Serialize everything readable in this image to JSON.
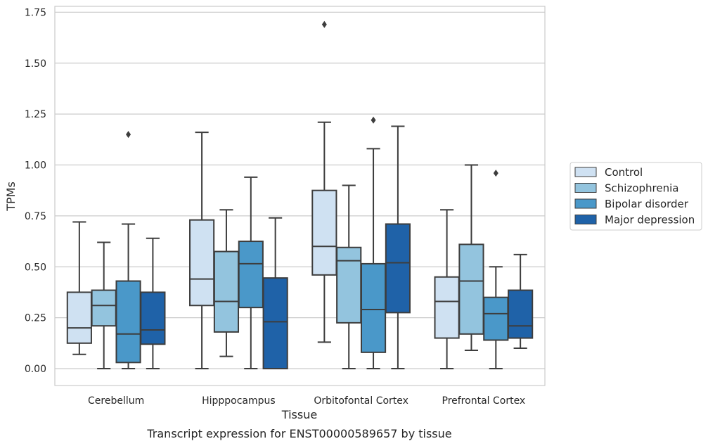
{
  "chart_data": {
    "type": "box",
    "caption": "Transcript expression for ENST00000589657 by tissue",
    "xlabel": "Tissue",
    "ylabel": "TPMs",
    "ylim": [
      -0.08,
      1.76
    ],
    "yticks": [
      "0.00",
      "0.25",
      "0.50",
      "0.75",
      "1.00",
      "1.25",
      "1.50",
      "1.75"
    ],
    "grid": true,
    "legend_position": "right",
    "categories": [
      "Cerebellum",
      "Hipppocampus",
      "Orbitofontal Cortex",
      "Prefrontal Cortex"
    ],
    "series": [
      {
        "name": "Control",
        "color": "#cfe1f2",
        "boxes": [
          {
            "whislo": 0.07,
            "q1": 0.125,
            "med": 0.2,
            "q3": 0.375,
            "whishi": 0.72,
            "fliers": []
          },
          {
            "whislo": 0.0,
            "q1": 0.31,
            "med": 0.44,
            "q3": 0.73,
            "whishi": 1.16,
            "fliers": []
          },
          {
            "whislo": 0.13,
            "q1": 0.46,
            "med": 0.6,
            "q3": 0.875,
            "whishi": 1.21,
            "fliers": [
              1.69
            ]
          },
          {
            "whislo": 0.0,
            "q1": 0.15,
            "med": 0.33,
            "q3": 0.45,
            "whishi": 0.78,
            "fliers": []
          }
        ]
      },
      {
        "name": "Schizophrenia",
        "color": "#93c4de",
        "boxes": [
          {
            "whislo": 0.0,
            "q1": 0.21,
            "med": 0.31,
            "q3": 0.385,
            "whishi": 0.62,
            "fliers": []
          },
          {
            "whislo": 0.06,
            "q1": 0.18,
            "med": 0.33,
            "q3": 0.575,
            "whishi": 0.78,
            "fliers": []
          },
          {
            "whislo": 0.0,
            "q1": 0.225,
            "med": 0.53,
            "q3": 0.595,
            "whishi": 0.9,
            "fliers": []
          },
          {
            "whislo": 0.09,
            "q1": 0.17,
            "med": 0.43,
            "q3": 0.61,
            "whishi": 1.0,
            "fliers": []
          }
        ]
      },
      {
        "name": "Bipolar disorder",
        "color": "#4a98c9",
        "boxes": [
          {
            "whislo": 0.0,
            "q1": 0.03,
            "med": 0.17,
            "q3": 0.43,
            "whishi": 0.71,
            "fliers": [
              1.15
            ]
          },
          {
            "whislo": 0.0,
            "q1": 0.3,
            "med": 0.515,
            "q3": 0.625,
            "whishi": 0.94,
            "fliers": []
          },
          {
            "whislo": 0.0,
            "q1": 0.08,
            "med": 0.29,
            "q3": 0.515,
            "whishi": 1.08,
            "fliers": [
              1.22
            ]
          },
          {
            "whislo": 0.0,
            "q1": 0.14,
            "med": 0.27,
            "q3": 0.35,
            "whishi": 0.5,
            "fliers": [
              0.96
            ]
          }
        ]
      },
      {
        "name": "Major depression",
        "color": "#1f62a8",
        "boxes": [
          {
            "whislo": 0.0,
            "q1": 0.12,
            "med": 0.19,
            "q3": 0.375,
            "whishi": 0.64,
            "fliers": []
          },
          {
            "whislo": 0.0,
            "q1": 0.0,
            "med": 0.23,
            "q3": 0.445,
            "whishi": 0.74,
            "fliers": []
          },
          {
            "whislo": 0.0,
            "q1": 0.275,
            "med": 0.52,
            "q3": 0.71,
            "whishi": 1.19,
            "fliers": []
          },
          {
            "whislo": 0.1,
            "q1": 0.15,
            "med": 0.21,
            "q3": 0.385,
            "whishi": 0.56,
            "fliers": []
          }
        ]
      }
    ]
  }
}
